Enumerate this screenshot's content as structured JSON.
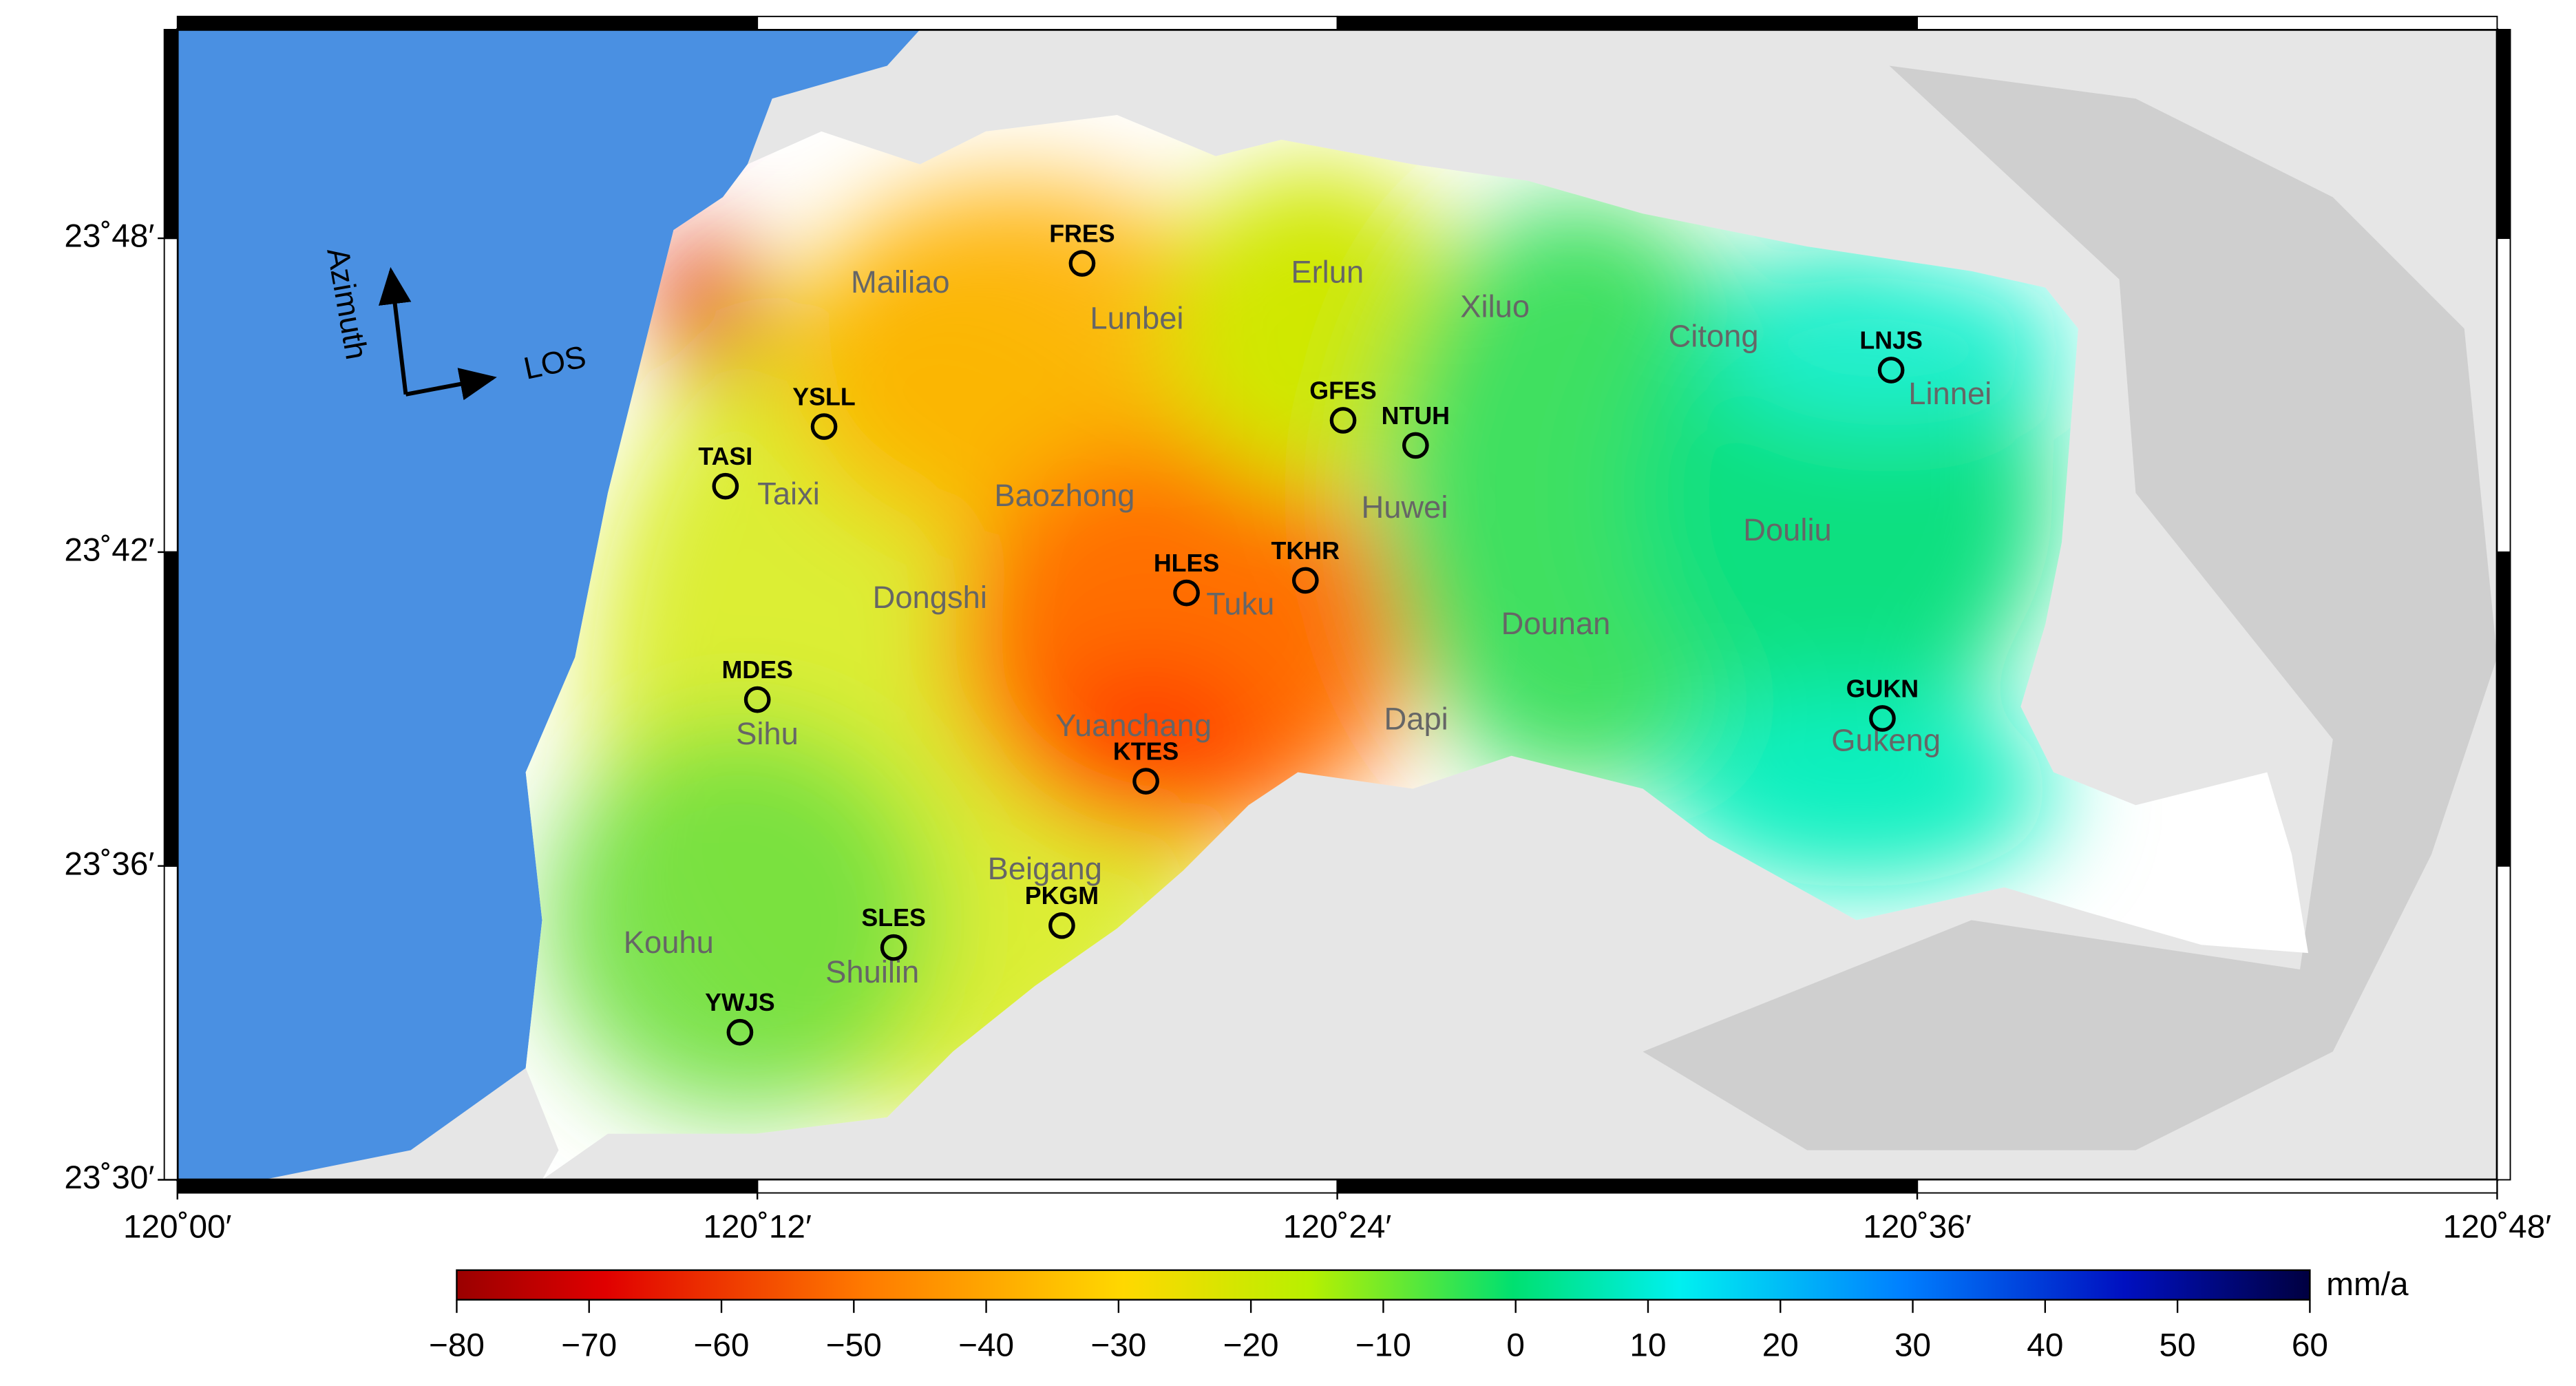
{
  "chart_data": {
    "type": "map",
    "xlim": [
      120,
      120.8
    ],
    "ylim": [
      23.5,
      23.8665
    ],
    "xticks": [
      {
        "value": 120,
        "label": "120˚00′"
      },
      {
        "value": 120.2,
        "label": "120˚12′"
      },
      {
        "value": 120.4,
        "label": "120˚24′"
      },
      {
        "value": 120.6,
        "label": "120˚36′"
      },
      {
        "value": 120.8,
        "label": "120˚48′"
      }
    ],
    "yticks": [
      {
        "value": 23.5,
        "label": "23˚30′"
      },
      {
        "value": 23.6,
        "label": "23˚36′"
      },
      {
        "value": 23.7,
        "label": "23˚42′"
      },
      {
        "value": 23.8,
        "label": "23˚48′"
      }
    ],
    "stations": {
      "names": [
        "FRES",
        "YSLL",
        "TASI",
        "GFES",
        "NTUH",
        "LNJS",
        "HLES",
        "TKHR",
        "MDES",
        "GUKN",
        "KTES",
        "PKGM",
        "SLES",
        "YWJS"
      ],
      "lon": [
        120.312,
        120.223,
        120.189,
        120.402,
        120.427,
        120.591,
        120.348,
        120.389,
        120.2,
        120.588,
        120.334,
        120.305,
        120.247,
        120.194
      ],
      "lat": [
        23.792,
        23.74,
        23.721,
        23.742,
        23.734,
        23.758,
        23.687,
        23.691,
        23.653,
        23.647,
        23.627,
        23.581,
        23.574,
        23.547
      ]
    },
    "places": [
      "Mailiao",
      "Lunbei",
      "Erlun",
      "Xiluo",
      "Citong",
      "Linnei",
      "Taixi",
      "Baozhong",
      "Huwei",
      "Douliu",
      "Dongshi",
      "Tuku",
      "Dounan",
      "Sihu",
      "Yuanchang",
      "Dapi",
      "Gukeng",
      "Beigang",
      "Kouhu",
      "Shuilin"
    ],
    "azimuth_label": "Azimuth",
    "los_label": "LOS",
    "colorbar": {
      "lim": [
        -80,
        60
      ],
      "ticks": [
        {
          "value": -80,
          "label": "−80"
        },
        {
          "value": -70,
          "label": "−70"
        },
        {
          "value": -60,
          "label": "−60"
        },
        {
          "value": -50,
          "label": "−50"
        },
        {
          "value": -40,
          "label": "−40"
        },
        {
          "value": -30,
          "label": "−30"
        },
        {
          "value": -20,
          "label": "−20"
        },
        {
          "value": -10,
          "label": "−10"
        },
        0,
        10,
        20,
        30,
        40,
        50,
        60
      ],
      "unit": "mm/a"
    }
  }
}
